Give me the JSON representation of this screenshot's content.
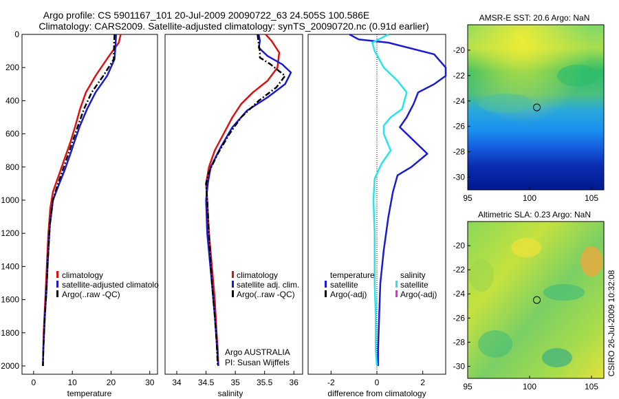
{
  "title": {
    "line1": "Argo profile: CS 5901167_101 20-Jul-2009 20090722_63 24.505S 100.586E",
    "line2": "Climatology: CARS2009. Satellite-adjusted climatology: synTS_20090720.nc (0.91d earlier)"
  },
  "footer": {
    "float_info": "Argo AUSTRALIA",
    "pi": "PI: Susan Wijffels",
    "stamp": "CSIRO 26-Jul-2009 10:32:08"
  },
  "colors": {
    "red": "#dd1111",
    "blue": "#1a1ad0",
    "black": "#000000",
    "cyan": "#22e6ee",
    "magenta": "#ee22ee"
  },
  "chart_data": [
    {
      "type": "line",
      "title": "temperature",
      "xlabel": "temperature",
      "ylabel": "",
      "xlim": [
        -3,
        32
      ],
      "ylim": [
        0,
        2050
      ],
      "y_inverted": true,
      "xticks": [
        "0",
        "10",
        "20",
        "30"
      ],
      "yticks": [
        "0",
        "200",
        "400",
        "600",
        "800",
        "1000",
        "1200",
        "1400",
        "1600",
        "1800",
        "2000"
      ],
      "legend": [
        {
          "label": "climatology",
          "color": "#dd1111"
        },
        {
          "label": "satellite-adjusted climatolo",
          "color": "#1a1ad0"
        },
        {
          "label": "Argo(..raw -QC)",
          "color": "#000000"
        }
      ],
      "series": [
        {
          "name": "climatology",
          "color": "#dd1111",
          "dash": "",
          "x": [
            22.5,
            22.0,
            19.5,
            16.0,
            13.5,
            12.0,
            10.8,
            9.5,
            8.0,
            6.5,
            5.0,
            4.3,
            3.8,
            3.4,
            3.0,
            2.8,
            2.6,
            2.5,
            2.4
          ],
          "y": [
            0,
            50,
            130,
            250,
            350,
            450,
            550,
            650,
            750,
            850,
            950,
            1050,
            1200,
            1400,
            1600,
            1700,
            1800,
            1900,
            2000
          ]
        },
        {
          "name": "satellite-adjusted climatology",
          "color": "#1a1ad0",
          "dash": "",
          "x": [
            21.3,
            21.2,
            20.9,
            19.0,
            16.0,
            13.8,
            12.0,
            10.5,
            9.5,
            8.0,
            6.3,
            5.0,
            4.2,
            3.7,
            3.3,
            2.9,
            2.7,
            2.5,
            2.4
          ],
          "y": [
            0,
            50,
            150,
            250,
            350,
            450,
            550,
            650,
            720,
            820,
            920,
            1000,
            1150,
            1350,
            1550,
            1700,
            1800,
            1900,
            2000
          ]
        },
        {
          "name": "Argo(..raw -QC)",
          "color": "#000000",
          "dash": "8,3,2,3",
          "x": [
            20.9,
            20.8,
            20.7,
            18.0,
            15.0,
            13.0,
            11.5,
            10.0,
            9.0,
            7.5,
            6.0,
            5.0,
            4.2,
            3.7,
            3.3,
            2.9,
            2.7,
            2.5,
            2.4
          ],
          "y": [
            0,
            50,
            150,
            250,
            350,
            450,
            550,
            650,
            720,
            820,
            920,
            1000,
            1150,
            1350,
            1550,
            1700,
            1800,
            1900,
            2000
          ]
        }
      ]
    },
    {
      "type": "line",
      "title": "salinity",
      "xlabel": "salinity",
      "ylabel": "",
      "xlim": [
        33.8,
        36.15
      ],
      "ylim": [
        0,
        2050
      ],
      "y_inverted": true,
      "xticks": [
        "34",
        "34.5",
        "35",
        "35.5",
        "36"
      ],
      "legend": [
        {
          "label": "climatology",
          "color": "#dd1111"
        },
        {
          "label": "satellite adj. clim.",
          "color": "#1a1ad0"
        },
        {
          "label": "Argo(..raw -QC)",
          "color": "#000000"
        }
      ],
      "series": [
        {
          "name": "climatology",
          "color": "#dd1111",
          "dash": "",
          "x": [
            35.52,
            35.62,
            35.75,
            35.72,
            35.55,
            35.3,
            35.1,
            34.95,
            34.8,
            34.65,
            34.55,
            34.5,
            34.52,
            34.55,
            34.6,
            34.65,
            34.68,
            34.7,
            34.71
          ],
          "y": [
            0,
            40,
            110,
            200,
            280,
            350,
            420,
            500,
            600,
            700,
            800,
            900,
            1000,
            1200,
            1400,
            1600,
            1800,
            1900,
            2000
          ]
        },
        {
          "name": "satellite adj. clim.",
          "color": "#1a1ad0",
          "dash": "",
          "x": [
            35.4,
            35.42,
            35.4,
            35.55,
            35.8,
            35.95,
            35.85,
            35.55,
            35.2,
            34.95,
            34.75,
            34.58,
            34.53,
            34.5,
            34.52,
            34.6,
            34.65,
            34.68,
            34.7,
            34.71
          ],
          "y": [
            0,
            40,
            80,
            130,
            180,
            230,
            300,
            380,
            460,
            560,
            680,
            800,
            900,
            1000,
            1200,
            1500,
            1700,
            1850,
            1950,
            2000
          ]
        },
        {
          "name": "Argo(..raw -QC)",
          "color": "#000000",
          "dash": "8,3,2,3",
          "x": [
            35.38,
            35.4,
            35.42,
            35.42,
            35.6,
            35.85,
            35.7,
            35.4,
            35.1,
            34.9,
            34.7,
            34.55,
            34.5,
            34.52,
            34.55,
            34.6,
            34.65,
            34.68,
            34.7
          ],
          "y": [
            0,
            60,
            100,
            140,
            180,
            250,
            320,
            400,
            500,
            600,
            720,
            830,
            900,
            1000,
            1200,
            1500,
            1700,
            1850,
            2000
          ]
        }
      ]
    },
    {
      "type": "line",
      "title": "difference",
      "xlabel": "difference from climatology",
      "ylabel": "",
      "xlim": [
        -3,
        3
      ],
      "ylim": [
        0,
        2050
      ],
      "y_inverted": true,
      "xticks": [
        "-2",
        "0",
        "2"
      ],
      "zero_line": true,
      "legend_headers": [
        "temperature",
        "salinity"
      ],
      "legend": [
        {
          "label": "satellite",
          "color": "#1a1ad0",
          "group": "temperature"
        },
        {
          "label": "Argo(-adj)",
          "color": "#000000",
          "group": "temperature"
        },
        {
          "label": "satellite",
          "color": "#22e6ee",
          "group": "salinity"
        },
        {
          "label": "Argo(-adj)",
          "color": "#ee22ee",
          "group": "salinity"
        }
      ],
      "series": [
        {
          "name": "temperature satellite",
          "color": "#1a1ad0",
          "dash": "",
          "x": [
            -1.2,
            -0.8,
            0.5,
            2.5,
            3.0,
            3.0,
            2.5,
            1.8,
            1.6,
            1.3,
            1.0,
            1.6,
            2.2,
            1.5,
            0.9,
            0.7,
            0.5,
            0.3,
            0.15,
            0.1,
            0.05,
            0.05
          ],
          "y": [
            0,
            30,
            50,
            120,
            200,
            250,
            300,
            350,
            420,
            500,
            560,
            640,
            720,
            800,
            850,
            950,
            1100,
            1300,
            1500,
            1700,
            1900,
            2000
          ]
        },
        {
          "name": "salinity satellite",
          "color": "#22e6ee",
          "dash": "",
          "x": [
            0.5,
            -0.2,
            -0.1,
            0.3,
            0.9,
            1.3,
            1.1,
            0.6,
            0.3,
            0.3,
            0.6,
            0.2,
            -0.1,
            -0.15,
            -0.1,
            -0.1,
            -0.05,
            -0.05,
            0.0
          ],
          "y": [
            0,
            50,
            100,
            200,
            280,
            350,
            450,
            500,
            550,
            600,
            700,
            780,
            870,
            1000,
            1200,
            1500,
            1700,
            1900,
            2000
          ]
        }
      ]
    }
  ],
  "maps": [
    {
      "title": "AMSR-E SST: 20.6 Argo: NaN",
      "xticks": [
        "95",
        "100",
        "105"
      ],
      "yticks": [
        "-20",
        "-22",
        "-24",
        "-26",
        "-28",
        "-30"
      ],
      "xlim": [
        95,
        106
      ],
      "ylim": [
        -31,
        -18
      ],
      "float_lon": 100.586,
      "float_lat": -24.505
    },
    {
      "title": "Altimetric SLA: 0.23 Argo: NaN",
      "xticks": [
        "95",
        "100",
        "105"
      ],
      "yticks": [
        "-20",
        "-22",
        "-24",
        "-26",
        "-28",
        "-30"
      ],
      "xlim": [
        95,
        106
      ],
      "ylim": [
        -31,
        -18
      ],
      "float_lon": 100.586,
      "float_lat": -24.505
    }
  ]
}
